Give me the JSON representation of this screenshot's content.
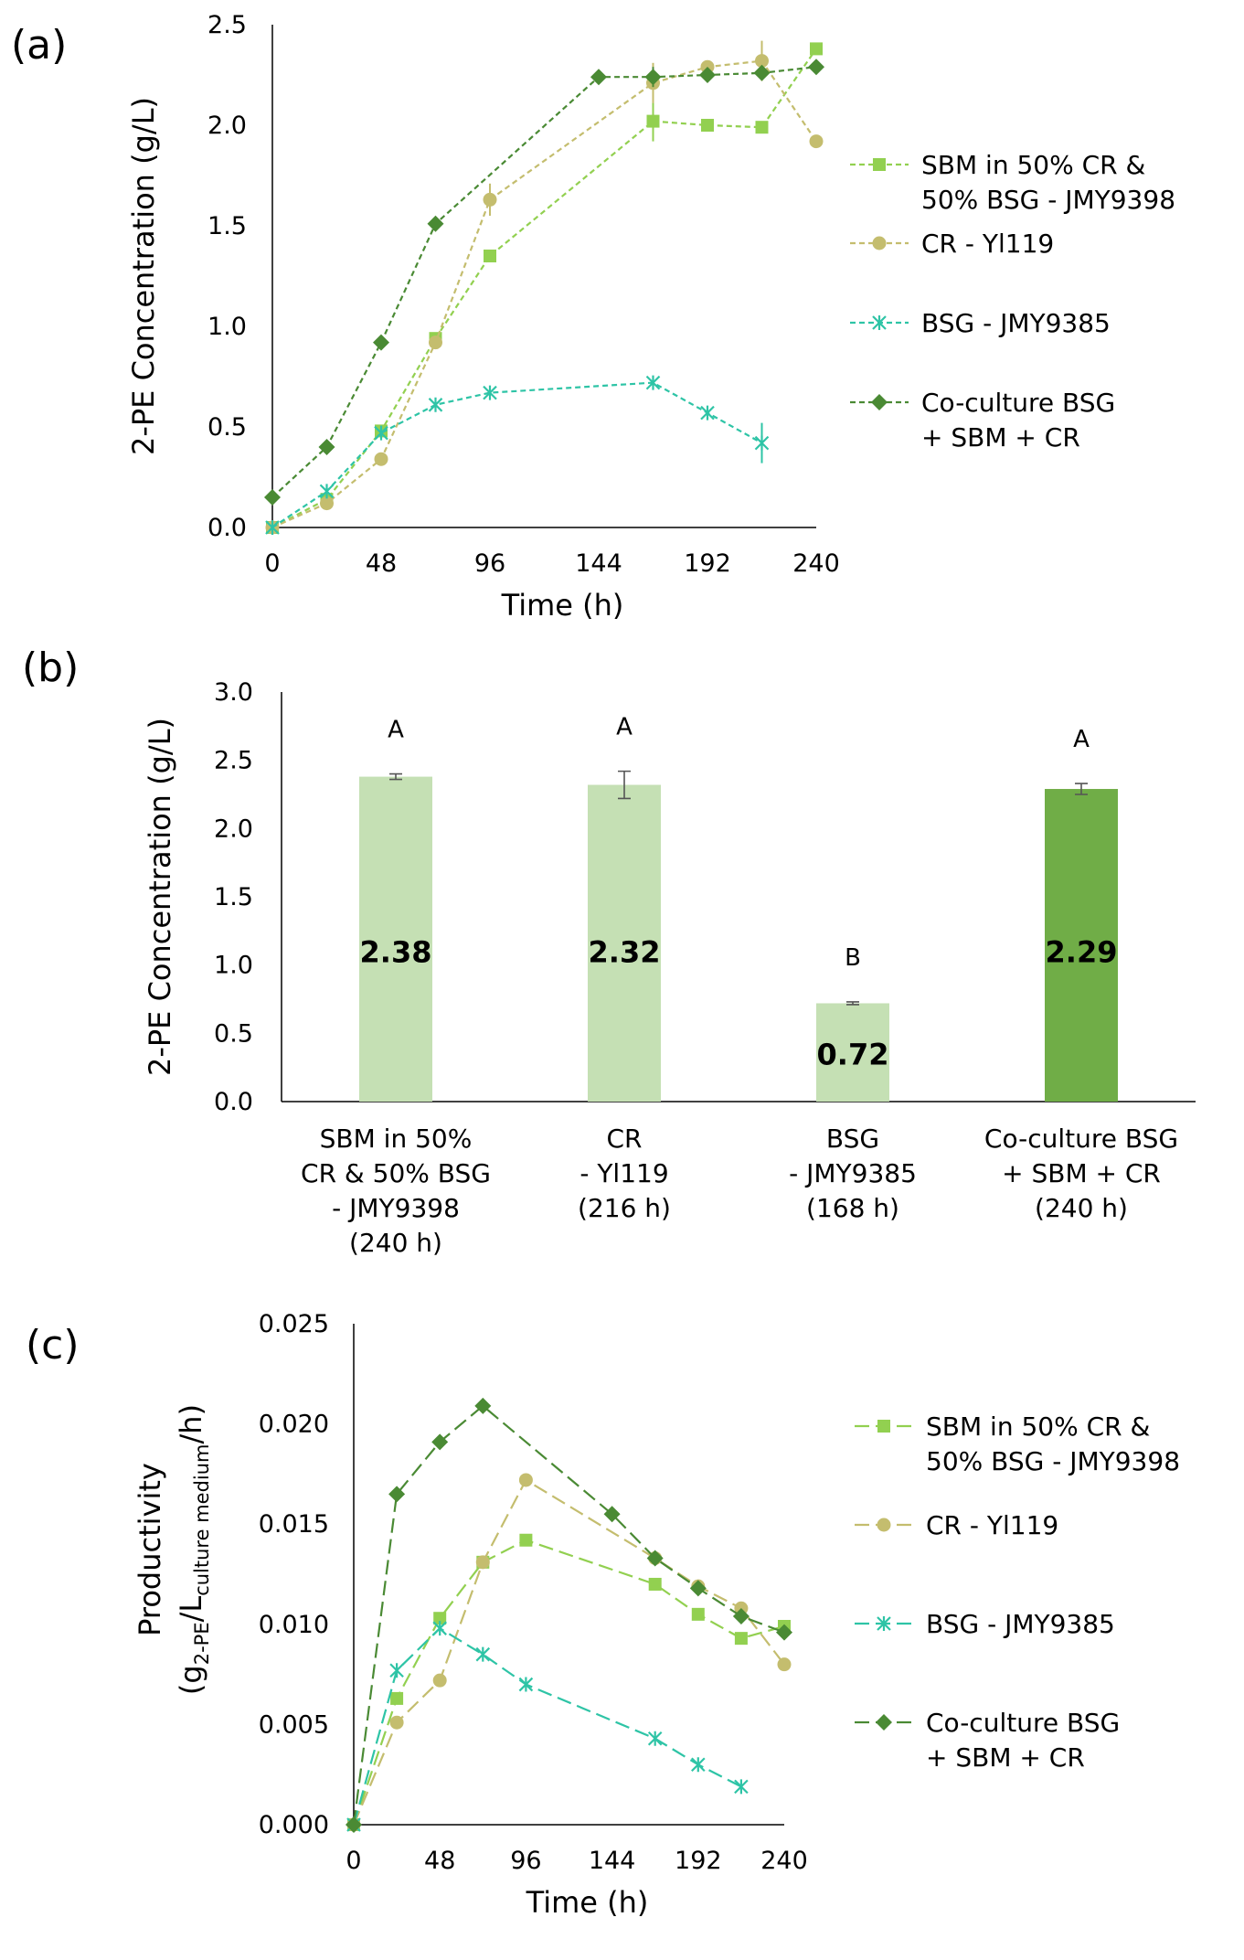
{
  "colors": {
    "sbm": "#92D050",
    "cr": "#C4BD6E",
    "bsg": "#2EC4A6",
    "co": "#4A8A34",
    "bar_light": "#C5E0B4",
    "bar_dark": "#70AD47",
    "axis": "#000000",
    "err": "#555555"
  },
  "chart_data": [
    {
      "id": "a",
      "panel_label": "(a)",
      "type": "line",
      "xlabel": "Time (h)",
      "ylabel": "2-PE Concentration (g/L)",
      "xlim": [
        0,
        240
      ],
      "ylim": [
        0,
        2.5
      ],
      "xticks": [
        0,
        48,
        96,
        144,
        192,
        240
      ],
      "yticks": [
        0.0,
        0.5,
        1.0,
        1.5,
        2.0,
        2.5
      ],
      "ytick_labels": [
        "0.0",
        "0.5",
        "1.0",
        "1.5",
        "2.0",
        "2.5"
      ],
      "series": [
        {
          "key": "sbm",
          "name_lines": [
            "SBM in 50% CR &",
            "50% BSG - JMY9398"
          ],
          "marker": "square",
          "x": [
            0,
            24,
            48,
            72,
            96,
            168,
            192,
            216,
            240
          ],
          "y": [
            0.0,
            0.14,
            0.48,
            0.94,
            1.35,
            2.02,
            2.0,
            1.99,
            2.38
          ],
          "err": [
            0,
            0,
            0,
            0,
            0,
            0.1,
            0,
            0,
            0.03
          ]
        },
        {
          "key": "cr",
          "name_lines": [
            "CR - Yl119"
          ],
          "marker": "circle",
          "x": [
            0,
            24,
            48,
            72,
            96,
            168,
            192,
            216,
            240
          ],
          "y": [
            0.0,
            0.12,
            0.34,
            0.92,
            1.63,
            2.21,
            2.29,
            2.32,
            1.92
          ],
          "err": [
            0,
            0,
            0,
            0,
            0.08,
            0.1,
            0,
            0.1,
            0
          ]
        },
        {
          "key": "bsg",
          "name_lines": [
            "BSG - JMY9385"
          ],
          "marker": "asterisk",
          "x": [
            0,
            24,
            48,
            72,
            96,
            168,
            192,
            216
          ],
          "y": [
            0.0,
            0.18,
            0.47,
            0.61,
            0.67,
            0.72,
            0.57,
            0.42
          ],
          "err": [
            0,
            0,
            0,
            0,
            0,
            0,
            0,
            0.1
          ]
        },
        {
          "key": "co",
          "name_lines": [
            "Co-culture BSG",
            "+ SBM + CR"
          ],
          "marker": "diamond",
          "x": [
            0,
            24,
            48,
            72,
            144,
            168,
            192,
            216,
            240
          ],
          "y": [
            0.15,
            0.4,
            0.92,
            1.51,
            2.24,
            2.24,
            2.25,
            2.26,
            2.29
          ],
          "err": [
            0,
            0,
            0,
            0,
            0,
            0.05,
            0,
            0,
            0
          ]
        }
      ]
    },
    {
      "id": "b",
      "panel_label": "(b)",
      "type": "bar",
      "ylabel": "2-PE Concentration (g/L)",
      "ylim": [
        0,
        3.0
      ],
      "yticks": [
        0.0,
        0.5,
        1.0,
        1.5,
        2.0,
        2.5,
        3.0
      ],
      "ytick_labels": [
        "0.0",
        "0.5",
        "1.0",
        "1.5",
        "2.0",
        "2.5",
        "3.0"
      ],
      "categories": [
        [
          "SBM in 50%",
          "CR & 50% BSG",
          "- JMY9398",
          "(240 h)"
        ],
        [
          "CR",
          "- Yl119",
          "(216 h)"
        ],
        [
          "BSG",
          "- JMY9385",
          "(168 h)"
        ],
        [
          "Co-culture BSG",
          "+ SBM + CR",
          "(240 h)"
        ]
      ],
      "values": [
        2.38,
        2.32,
        0.72,
        2.29
      ],
      "value_labels": [
        "2.38",
        "2.32",
        "0.72",
        "2.29"
      ],
      "errors": [
        0.02,
        0.1,
        0.01,
        0.04
      ],
      "letters": [
        "A",
        "A",
        "B",
        "A"
      ],
      "bar_colors": [
        "bar_light",
        "bar_light",
        "bar_light",
        "bar_dark"
      ]
    },
    {
      "id": "c",
      "panel_label": "(c)",
      "type": "line",
      "xlabel": "Time (h)",
      "ylabel_line1": "Productivity",
      "ylabel_line2": {
        "open": "(g",
        "sub1": "2-PE",
        "mid": "/L",
        "sub2": "culture medium",
        "close": "/h)"
      },
      "xlim": [
        0,
        240
      ],
      "ylim": [
        0,
        0.025
      ],
      "xticks": [
        0,
        48,
        96,
        144,
        192,
        240
      ],
      "yticks": [
        0.0,
        0.005,
        0.01,
        0.015,
        0.02,
        0.025
      ],
      "ytick_labels": [
        "0.000",
        "0.005",
        "0.010",
        "0.015",
        "0.020",
        "0.025"
      ],
      "series": [
        {
          "key": "sbm",
          "name_lines": [
            "SBM in 50% CR &",
            "50% BSG - JMY9398"
          ],
          "marker": "square",
          "x": [
            0,
            24,
            48,
            72,
            96,
            168,
            192,
            216,
            240
          ],
          "y": [
            0.0,
            0.0063,
            0.0103,
            0.0131,
            0.0142,
            0.012,
            0.0105,
            0.0093,
            0.0099
          ]
        },
        {
          "key": "cr",
          "name_lines": [
            "CR - Yl119"
          ],
          "marker": "circle",
          "x": [
            0,
            24,
            48,
            72,
            96,
            168,
            192,
            216,
            240
          ],
          "y": [
            0.0,
            0.0051,
            0.0072,
            0.0131,
            0.0172,
            0.0133,
            0.0119,
            0.0108,
            0.008
          ]
        },
        {
          "key": "bsg",
          "name_lines": [
            "BSG - JMY9385"
          ],
          "marker": "asterisk",
          "x": [
            0,
            24,
            48,
            72,
            96,
            168,
            192,
            216
          ],
          "y": [
            0.0,
            0.0077,
            0.0098,
            0.0085,
            0.007,
            0.0043,
            0.003,
            0.0019
          ]
        },
        {
          "key": "co",
          "name_lines": [
            "Co-culture BSG",
            "+ SBM + CR"
          ],
          "marker": "diamond",
          "x": [
            0,
            24,
            48,
            72,
            144,
            168,
            192,
            216,
            240
          ],
          "y": [
            0.0,
            0.0165,
            0.0191,
            0.0209,
            0.0155,
            0.0133,
            0.0118,
            0.0104,
            0.0096
          ]
        }
      ]
    }
  ]
}
